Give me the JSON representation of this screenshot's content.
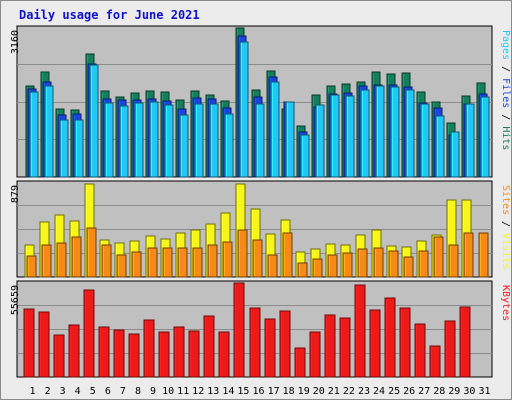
{
  "title": "Daily usage for June 2021",
  "colors": {
    "hits": "#157e5c",
    "files": "#1a44e0",
    "pages": "#21c8f6",
    "visits": "#f6f61a",
    "sites": "#f58a16",
    "kbytes": "#ee1a1a",
    "panel_bg": "#c0c0c0",
    "weekend_day": "#157e5c",
    "weekday": "#000000"
  },
  "chart_data": [
    {
      "type": "bar",
      "name": "pages-files-hits",
      "ymax_label": "3160",
      "ylim": [
        0,
        3160
      ],
      "right_label": {
        "pages": "Pages",
        "files": "Files",
        "hits": "Hits",
        "sep": " / "
      },
      "categories": [
        "1",
        "2",
        "3",
        "4",
        "5",
        "6",
        "7",
        "8",
        "9",
        "10",
        "11",
        "12",
        "13",
        "14",
        "15",
        "16",
        "17",
        "18",
        "19",
        "20",
        "21",
        "22",
        "23",
        "24",
        "25",
        "26",
        "27",
        "28",
        "29",
        "30",
        "31"
      ],
      "weekend_days": [
        5,
        6,
        12,
        13,
        19,
        20,
        26,
        27
      ],
      "series": [
        {
          "name": "Hits",
          "values": [
            1940,
            2230,
            1450,
            1430,
            2600,
            1830,
            1700,
            1780,
            1820,
            1800,
            1640,
            1830,
            1730,
            1620,
            3160,
            1850,
            2250,
            1440,
            1080,
            1730,
            1930,
            1970,
            2010,
            2230,
            2190,
            2200,
            1810,
            1600,
            1150,
            1710,
            2000
          ]
        },
        {
          "name": "Files",
          "values": [
            1870,
            2010,
            1310,
            1330,
            2400,
            1660,
            1640,
            1630,
            1650,
            1610,
            1440,
            1680,
            1650,
            1470,
            3000,
            1690,
            2120,
            1590,
            960,
            1490,
            1760,
            1790,
            1920,
            1950,
            1950,
            1900,
            1570,
            1470,
            900,
            1550,
            1760
          ]
        },
        {
          "name": "Pages",
          "values": [
            1810,
            1920,
            1210,
            1200,
            2370,
            1570,
            1500,
            1560,
            1580,
            1520,
            1310,
            1540,
            1540,
            1340,
            2860,
            1550,
            2020,
            1590,
            890,
            1520,
            1740,
            1720,
            1850,
            1930,
            1910,
            1850,
            1540,
            1300,
            950,
            1550,
            1700
          ]
        }
      ]
    },
    {
      "type": "bar",
      "name": "sites-visits",
      "ymax_label": "879",
      "ylim": [
        0,
        879
      ],
      "right_label": {
        "sites": "Sites",
        "visits": "Visits",
        "sep": " / "
      },
      "categories": [
        "1",
        "2",
        "3",
        "4",
        "5",
        "6",
        "7",
        "8",
        "9",
        "10",
        "11",
        "12",
        "13",
        "14",
        "15",
        "16",
        "17",
        "18",
        "19",
        "20",
        "21",
        "22",
        "23",
        "24",
        "25",
        "26",
        "27",
        "28",
        "29",
        "30",
        "31"
      ],
      "series": [
        {
          "name": "Visits",
          "values": [
            300,
            510,
            580,
            520,
            870,
            350,
            320,
            340,
            380,
            360,
            410,
            440,
            500,
            600,
            870,
            640,
            400,
            530,
            230,
            260,
            310,
            300,
            390,
            440,
            290,
            280,
            340,
            390,
            720,
            720,
            0
          ]
        },
        {
          "name": "Sites",
          "values": [
            200,
            300,
            320,
            370,
            460,
            300,
            210,
            230,
            270,
            270,
            270,
            270,
            300,
            330,
            440,
            350,
            210,
            410,
            130,
            170,
            210,
            220,
            260,
            270,
            240,
            190,
            240,
            370,
            300,
            410,
            410
          ]
        }
      ]
    },
    {
      "type": "bar",
      "name": "kbytes",
      "ymax_label": "55659",
      "ylim": [
        0,
        55659
      ],
      "right_label": {
        "kbytes": "KBytes"
      },
      "categories": [
        "1",
        "2",
        "3",
        "4",
        "5",
        "6",
        "7",
        "8",
        "9",
        "10",
        "11",
        "12",
        "13",
        "14",
        "15",
        "16",
        "17",
        "18",
        "19",
        "20",
        "21",
        "22",
        "23",
        "24",
        "25",
        "26",
        "27",
        "28",
        "29",
        "30",
        "31"
      ],
      "series": [
        {
          "name": "KBytes",
          "values": [
            40200,
            38700,
            25100,
            30700,
            51700,
            29600,
            27900,
            25300,
            33500,
            26900,
            29900,
            27200,
            35900,
            26900,
            55659,
            40800,
            34500,
            38900,
            17200,
            26800,
            36900,
            34800,
            54700,
            39800,
            46500,
            40900,
            31600,
            18200,
            33400,
            41200,
            0
          ]
        }
      ]
    }
  ]
}
